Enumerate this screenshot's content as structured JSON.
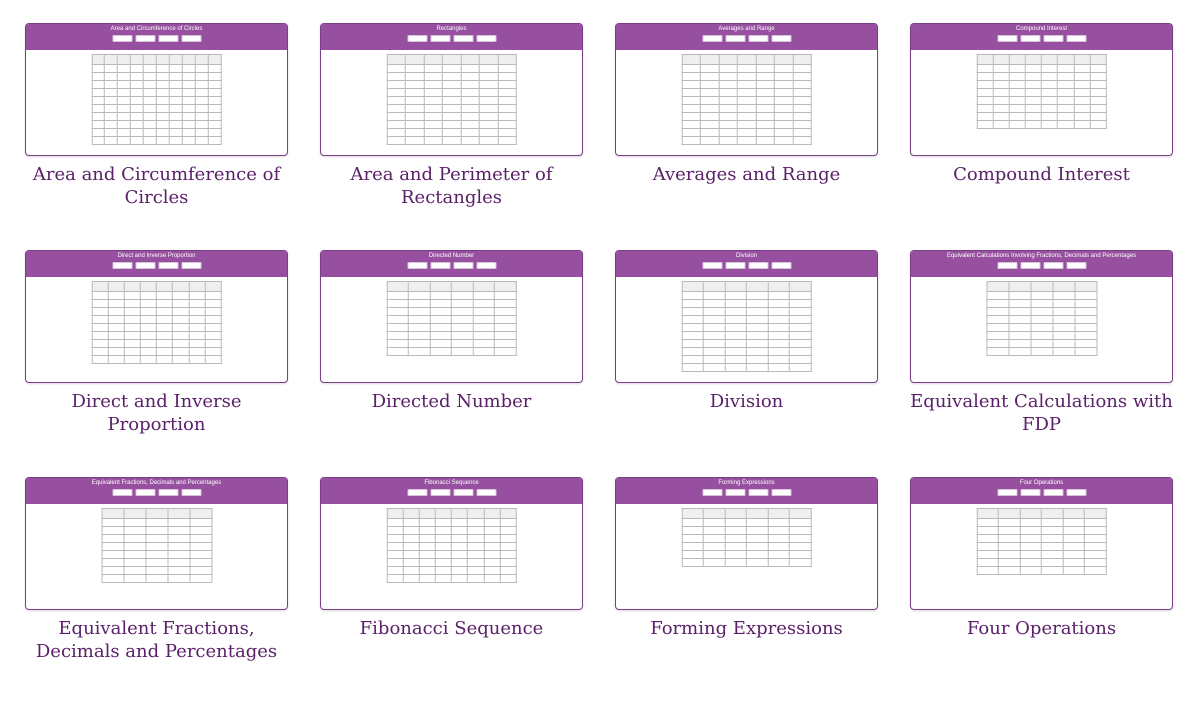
{
  "page": {
    "accent": "#97509f",
    "label_color": "#5a2068"
  },
  "cards": [
    {
      "label": "Area and Circumference of Circles",
      "thumb_title": "Area and Circumference of Circles",
      "cols": 10,
      "rows": 11
    },
    {
      "label": "Area and Perimeter of Rectangles",
      "thumb_title": "Rectangles",
      "cols": 7,
      "rows": 11
    },
    {
      "label": "Averages and Range",
      "thumb_title": "Averages and Range",
      "cols": 7,
      "rows": 11
    },
    {
      "label": "Compound Interest",
      "thumb_title": "Compound Interest",
      "cols": 8,
      "rows": 9
    },
    {
      "label": "Direct and Inverse Proportion",
      "thumb_title": "Direct and Inverse Proportion",
      "cols": 8,
      "rows": 10
    },
    {
      "label": "Directed Number",
      "thumb_title": "Directed Number",
      "cols": 6,
      "rows": 9
    },
    {
      "label": "Division",
      "thumb_title": "Division",
      "cols": 6,
      "rows": 11
    },
    {
      "label": "Equivalent Calculations with FDP",
      "thumb_title": "Equivalent Calculations Involving Fractions, Decimals and Percentages",
      "cols": 5,
      "rows": 9
    },
    {
      "label": "Equivalent Fractions, Decimals and Percentages",
      "thumb_title": "Equivalent Fractions, Decimals and Percentages",
      "cols": 5,
      "rows": 9
    },
    {
      "label": "Fibonacci Sequence",
      "thumb_title": "Fibonacci Sequence",
      "cols": 8,
      "rows": 9
    },
    {
      "label": "Forming Expressions",
      "thumb_title": "Forming Expressions",
      "cols": 6,
      "rows": 7
    },
    {
      "label": "Four Operations",
      "thumb_title": "Four Operations",
      "cols": 6,
      "rows": 8
    }
  ]
}
